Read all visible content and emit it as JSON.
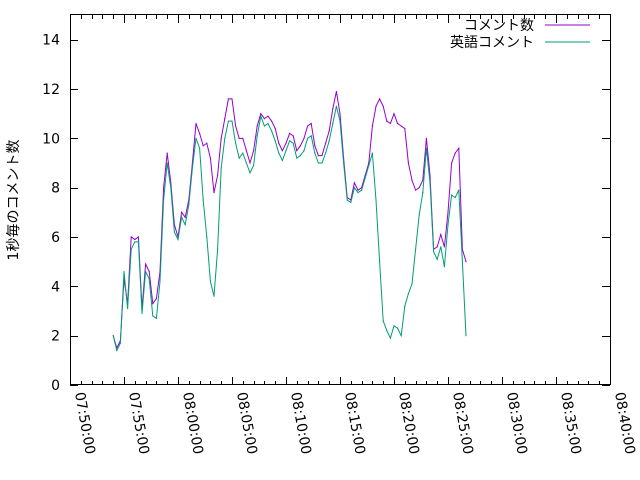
{
  "chart_data": {
    "type": "line",
    "ylabel": "1秒毎のコメント数",
    "xlabel": "",
    "title": "",
    "ylim": [
      0,
      15
    ],
    "yticks": [
      0,
      2,
      4,
      6,
      8,
      10,
      12,
      14
    ],
    "xlim": [
      "07:50:00",
      "08:40:00"
    ],
    "xticks": [
      "07:50:00",
      "07:55:00",
      "08:00:00",
      "08:05:00",
      "08:10:00",
      "08:15:00",
      "08:20:00",
      "08:25:00",
      "08:30:00",
      "08:35:00",
      "08:40:00"
    ],
    "grid": false,
    "legend_position": "top-right",
    "series": [
      {
        "name": "コメント数",
        "color": "#9400d3",
        "points": [
          [
            "07:54:00",
            2.0
          ],
          [
            "07:54:20",
            1.5
          ],
          [
            "07:54:40",
            1.8
          ],
          [
            "07:55:00",
            4.3
          ],
          [
            "07:55:20",
            3.3
          ],
          [
            "07:55:40",
            6.0
          ],
          [
            "07:56:00",
            5.9
          ],
          [
            "07:56:20",
            6.0
          ],
          [
            "07:56:40",
            3.1
          ],
          [
            "07:57:00",
            4.9
          ],
          [
            "07:57:20",
            4.6
          ],
          [
            "07:57:40",
            3.3
          ],
          [
            "07:58:00",
            3.5
          ],
          [
            "07:58:20",
            4.6
          ],
          [
            "07:58:40",
            8.0
          ],
          [
            "07:59:00",
            9.4
          ],
          [
            "07:59:20",
            8.2
          ],
          [
            "07:59:40",
            6.5
          ],
          [
            "08:00:00",
            6.0
          ],
          [
            "08:00:20",
            7.0
          ],
          [
            "08:00:40",
            6.8
          ],
          [
            "08:01:00",
            7.5
          ],
          [
            "08:01:20",
            9.0
          ],
          [
            "08:01:40",
            10.6
          ],
          [
            "08:02:00",
            10.2
          ],
          [
            "08:02:20",
            9.7
          ],
          [
            "08:02:40",
            9.8
          ],
          [
            "08:03:00",
            9.2
          ],
          [
            "08:03:20",
            7.8
          ],
          [
            "08:03:40",
            8.5
          ],
          [
            "08:04:00",
            10.0
          ],
          [
            "08:04:20",
            10.8
          ],
          [
            "08:04:40",
            11.6
          ],
          [
            "08:05:00",
            11.6
          ],
          [
            "08:05:20",
            10.5
          ],
          [
            "08:05:40",
            10.0
          ],
          [
            "08:06:00",
            10.0
          ],
          [
            "08:06:20",
            9.5
          ],
          [
            "08:06:40",
            9.0
          ],
          [
            "08:07:00",
            9.5
          ],
          [
            "08:07:20",
            10.5
          ],
          [
            "08:07:40",
            11.0
          ],
          [
            "08:08:00",
            10.8
          ],
          [
            "08:08:20",
            10.9
          ],
          [
            "08:08:40",
            10.7
          ],
          [
            "08:09:00",
            10.4
          ],
          [
            "08:09:20",
            9.8
          ],
          [
            "08:09:40",
            9.5
          ],
          [
            "08:10:00",
            9.8
          ],
          [
            "08:10:20",
            10.2
          ],
          [
            "08:10:40",
            10.1
          ],
          [
            "08:11:00",
            9.5
          ],
          [
            "08:11:20",
            9.7
          ],
          [
            "08:11:40",
            10.0
          ],
          [
            "08:12:00",
            10.5
          ],
          [
            "08:12:20",
            10.6
          ],
          [
            "08:12:40",
            9.7
          ],
          [
            "08:13:00",
            9.3
          ],
          [
            "08:13:20",
            9.3
          ],
          [
            "08:13:40",
            9.8
          ],
          [
            "08:14:00",
            10.3
          ],
          [
            "08:14:20",
            11.2
          ],
          [
            "08:14:40",
            11.9
          ],
          [
            "08:15:00",
            11.0
          ],
          [
            "08:15:20",
            9.2
          ],
          [
            "08:15:40",
            7.6
          ],
          [
            "08:16:00",
            7.5
          ],
          [
            "08:16:20",
            8.2
          ],
          [
            "08:16:40",
            7.9
          ],
          [
            "08:17:00",
            8.0
          ],
          [
            "08:17:20",
            8.5
          ],
          [
            "08:17:40",
            9.0
          ],
          [
            "08:18:00",
            10.5
          ],
          [
            "08:18:20",
            11.3
          ],
          [
            "08:18:40",
            11.6
          ],
          [
            "08:19:00",
            11.3
          ],
          [
            "08:19:20",
            10.7
          ],
          [
            "08:19:40",
            10.6
          ],
          [
            "08:20:00",
            11.0
          ],
          [
            "08:20:20",
            10.6
          ],
          [
            "08:20:40",
            10.5
          ],
          [
            "08:21:00",
            10.4
          ],
          [
            "08:21:20",
            9.0
          ],
          [
            "08:21:40",
            8.3
          ],
          [
            "08:22:00",
            7.9
          ],
          [
            "08:22:20",
            8.0
          ],
          [
            "08:22:40",
            8.3
          ],
          [
            "08:23:00",
            10.0
          ],
          [
            "08:23:20",
            8.5
          ],
          [
            "08:23:40",
            5.5
          ],
          [
            "08:24:00",
            5.6
          ],
          [
            "08:24:20",
            6.1
          ],
          [
            "08:24:40",
            5.6
          ],
          [
            "08:25:00",
            7.0
          ],
          [
            "08:25:20",
            9.0
          ],
          [
            "08:25:40",
            9.4
          ],
          [
            "08:26:00",
            9.6
          ],
          [
            "08:26:20",
            5.5
          ],
          [
            "08:26:40",
            5.0
          ]
        ]
      },
      {
        "name": "英語コメント",
        "color": "#009e73",
        "points": [
          [
            "07:54:00",
            2.0
          ],
          [
            "07:54:20",
            1.4
          ],
          [
            "07:54:40",
            1.7
          ],
          [
            "07:55:00",
            4.6
          ],
          [
            "07:55:20",
            3.1
          ],
          [
            "07:55:40",
            5.5
          ],
          [
            "07:56:00",
            5.8
          ],
          [
            "07:56:20",
            5.8
          ],
          [
            "07:56:40",
            2.9
          ],
          [
            "07:57:00",
            4.6
          ],
          [
            "07:57:20",
            4.3
          ],
          [
            "07:57:40",
            2.8
          ],
          [
            "07:58:00",
            2.7
          ],
          [
            "07:58:20",
            4.2
          ],
          [
            "07:58:40",
            7.5
          ],
          [
            "07:59:00",
            9.0
          ],
          [
            "07:59:20",
            8.0
          ],
          [
            "07:59:40",
            6.2
          ],
          [
            "08:00:00",
            5.9
          ],
          [
            "08:00:20",
            6.8
          ],
          [
            "08:00:40",
            6.5
          ],
          [
            "08:01:00",
            7.3
          ],
          [
            "08:01:20",
            8.8
          ],
          [
            "08:01:40",
            10.0
          ],
          [
            "08:02:00",
            9.6
          ],
          [
            "08:02:20",
            7.5
          ],
          [
            "08:02:40",
            6.0
          ],
          [
            "08:03:00",
            4.2
          ],
          [
            "08:03:20",
            3.6
          ],
          [
            "08:03:40",
            5.5
          ],
          [
            "08:04:00",
            8.8
          ],
          [
            "08:04:20",
            10.0
          ],
          [
            "08:04:40",
            10.7
          ],
          [
            "08:05:00",
            10.7
          ],
          [
            "08:05:20",
            9.8
          ],
          [
            "08:05:40",
            9.2
          ],
          [
            "08:06:00",
            9.4
          ],
          [
            "08:06:20",
            9.0
          ],
          [
            "08:06:40",
            8.6
          ],
          [
            "08:07:00",
            8.9
          ],
          [
            "08:07:20",
            10.1
          ],
          [
            "08:07:40",
            10.9
          ],
          [
            "08:08:00",
            10.5
          ],
          [
            "08:08:20",
            10.6
          ],
          [
            "08:08:40",
            10.3
          ],
          [
            "08:09:00",
            9.9
          ],
          [
            "08:09:20",
            9.4
          ],
          [
            "08:09:40",
            9.1
          ],
          [
            "08:10:00",
            9.5
          ],
          [
            "08:10:20",
            9.9
          ],
          [
            "08:10:40",
            9.8
          ],
          [
            "08:11:00",
            9.2
          ],
          [
            "08:11:20",
            9.3
          ],
          [
            "08:11:40",
            9.5
          ],
          [
            "08:12:00",
            10.0
          ],
          [
            "08:12:20",
            10.1
          ],
          [
            "08:12:40",
            9.4
          ],
          [
            "08:13:00",
            9.0
          ],
          [
            "08:13:20",
            9.0
          ],
          [
            "08:13:40",
            9.4
          ],
          [
            "08:14:00",
            9.9
          ],
          [
            "08:14:20",
            10.6
          ],
          [
            "08:14:40",
            11.3
          ],
          [
            "08:15:00",
            10.7
          ],
          [
            "08:15:20",
            9.0
          ],
          [
            "08:15:40",
            7.5
          ],
          [
            "08:16:00",
            7.4
          ],
          [
            "08:16:20",
            8.0
          ],
          [
            "08:16:40",
            7.8
          ],
          [
            "08:17:00",
            7.9
          ],
          [
            "08:17:20",
            8.4
          ],
          [
            "08:17:40",
            8.9
          ],
          [
            "08:18:00",
            9.4
          ],
          [
            "08:18:20",
            7.5
          ],
          [
            "08:18:40",
            5.0
          ],
          [
            "08:19:00",
            2.6
          ],
          [
            "08:19:20",
            2.2
          ],
          [
            "08:19:40",
            1.9
          ],
          [
            "08:20:00",
            2.4
          ],
          [
            "08:20:20",
            2.3
          ],
          [
            "08:20:40",
            2.0
          ],
          [
            "08:21:00",
            3.2
          ],
          [
            "08:21:20",
            3.7
          ],
          [
            "08:21:40",
            4.1
          ],
          [
            "08:22:00",
            5.5
          ],
          [
            "08:22:20",
            6.9
          ],
          [
            "08:22:40",
            7.8
          ],
          [
            "08:23:00",
            9.6
          ],
          [
            "08:23:20",
            8.2
          ],
          [
            "08:23:40",
            5.4
          ],
          [
            "08:24:00",
            5.1
          ],
          [
            "08:24:20",
            5.6
          ],
          [
            "08:24:40",
            4.8
          ],
          [
            "08:25:00",
            6.5
          ],
          [
            "08:25:20",
            7.7
          ],
          [
            "08:25:40",
            7.6
          ],
          [
            "08:26:00",
            7.9
          ],
          [
            "08:26:20",
            5.0
          ],
          [
            "08:26:40",
            2.0
          ]
        ]
      }
    ]
  }
}
